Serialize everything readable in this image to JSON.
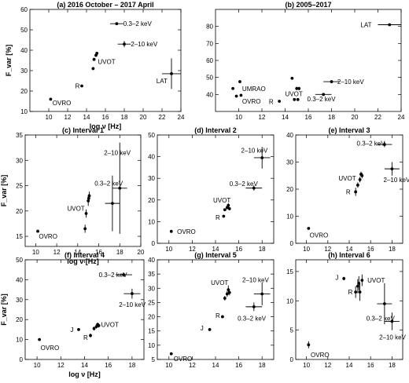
{
  "x_tick_labels": {
    "t10": "10",
    "t12": "12",
    "t14": "14",
    "t16": "16",
    "t18": "18",
    "t20": "20",
    "t22": "22",
    "t24": "24"
  },
  "chart_data": [
    {
      "type": "scatter",
      "title": "(a) 2016 October – 2017 April",
      "xlabel": "log ν [Hz]",
      "ylabel": "F_var [%]",
      "xlim": [
        8,
        24
      ],
      "ylim": [
        10,
        60
      ],
      "xticks": [
        10,
        12,
        14,
        16,
        18,
        20,
        22,
        24
      ],
      "yticks": [
        10,
        20,
        30,
        40,
        50,
        60
      ],
      "points": [
        {
          "x": 10.2,
          "y": 16.0,
          "xerr": 0,
          "yerr": 0.5
        },
        {
          "x": 13.5,
          "y": 22.5,
          "xerr": 0,
          "yerr": 0.5
        },
        {
          "x": 14.7,
          "y": 31.0,
          "xerr": 0,
          "yerr": 0.7
        },
        {
          "x": 14.8,
          "y": 35.5,
          "xerr": 0,
          "yerr": 0.7
        },
        {
          "x": 15.0,
          "y": 37.5,
          "xerr": 0,
          "yerr": 0.7
        },
        {
          "x": 15.1,
          "y": 38.5,
          "xerr": 0,
          "yerr": 0.7
        },
        {
          "x": 17.2,
          "y": 53.0,
          "xerr": 0.7,
          "yerr": 0.6
        },
        {
          "x": 18.0,
          "y": 43.0,
          "xerr": 0.7,
          "yerr": 1.5
        },
        {
          "x": 23.0,
          "y": 28.5,
          "xerr": 1.0,
          "yerr": 7.5
        }
      ],
      "annotations": [
        {
          "text": "OVRO",
          "x": 10.4,
          "y": 14.2
        },
        {
          "text": "R",
          "x": 12.8,
          "y": 22.5
        },
        {
          "text": "UVOT",
          "x": 15.2,
          "y": 34.5
        },
        {
          "text": "0.3–2 keV",
          "x": 17.9,
          "y": 53.0
        },
        {
          "text": "2–10 keV",
          "x": 18.7,
          "y": 43.0
        },
        {
          "text": "LAT",
          "x": 21.4,
          "y": 25.0
        }
      ]
    },
    {
      "type": "scatter",
      "title": "(b) 2005–2017",
      "xlim": [
        8,
        24
      ],
      "ylim": [
        30,
        90
      ],
      "xticks": [
        10,
        12,
        14,
        16,
        18,
        20,
        22,
        24
      ],
      "yticks": [
        40,
        50,
        60,
        70,
        80
      ],
      "points": [
        {
          "x": 9.5,
          "y": 43.5,
          "xerr": 0,
          "yerr": 0.5
        },
        {
          "x": 9.8,
          "y": 39.0,
          "xerr": 0,
          "yerr": 0.5
        },
        {
          "x": 10.1,
          "y": 47.5,
          "xerr": 0,
          "yerr": 0.5
        },
        {
          "x": 10.2,
          "y": 39.5,
          "xerr": 0,
          "yerr": 0.5
        },
        {
          "x": 13.5,
          "y": 36.0,
          "xerr": 0,
          "yerr": 0.5
        },
        {
          "x": 14.6,
          "y": 49.5,
          "xerr": 0,
          "yerr": 0.5
        },
        {
          "x": 14.8,
          "y": 37.0,
          "xerr": 0,
          "yerr": 0.5
        },
        {
          "x": 15.0,
          "y": 43.5,
          "xerr": 0,
          "yerr": 1.0
        },
        {
          "x": 15.1,
          "y": 37.0,
          "xerr": 0,
          "yerr": 0.5
        },
        {
          "x": 15.2,
          "y": 43.5,
          "xerr": 0,
          "yerr": 1.0
        },
        {
          "x": 17.3,
          "y": 40.0,
          "xerr": 0.7,
          "yerr": 0.5
        },
        {
          "x": 18.0,
          "y": 47.5,
          "xerr": 0.7,
          "yerr": 0.5
        },
        {
          "x": 23.0,
          "y": 81.0,
          "xerr": 1.0,
          "yerr": 0.7
        }
      ],
      "annotations": [
        {
          "text": "UMRAO",
          "x": 10.3,
          "y": 43.3
        },
        {
          "text": "OVRO",
          "x": 10.3,
          "y": 36.0
        },
        {
          "text": "R",
          "x": 12.6,
          "y": 35.8
        },
        {
          "text": "UVOT",
          "x": 14.0,
          "y": 40.5
        },
        {
          "text": "0.3–2 keV",
          "x": 15.9,
          "y": 37.5
        },
        {
          "text": "2–10 keV",
          "x": 18.5,
          "y": 47.5
        },
        {
          "text": "LAT",
          "x": 20.5,
          "y": 81.0
        }
      ]
    },
    {
      "type": "scatter",
      "title": "(c) Interval 1",
      "xlabel": "log ν [Hz]",
      "ylabel": "F_var [%]",
      "xlim": [
        9,
        20
      ],
      "ylim": [
        13,
        35
      ],
      "xticks": [
        10,
        12,
        14,
        16,
        18,
        20
      ],
      "yticks": [
        15,
        20,
        25,
        30,
        35
      ],
      "points": [
        {
          "x": 10.2,
          "y": 16.0,
          "xerr": 0,
          "yerr": 0.3
        },
        {
          "x": 14.7,
          "y": 16.5,
          "xerr": 0,
          "yerr": 0.8
        },
        {
          "x": 14.8,
          "y": 19.5,
          "xerr": 0,
          "yerr": 0.8
        },
        {
          "x": 15.0,
          "y": 22.0,
          "xerr": 0,
          "yerr": 1.0
        },
        {
          "x": 15.05,
          "y": 22.5,
          "xerr": 0,
          "yerr": 0.8
        },
        {
          "x": 15.1,
          "y": 23.0,
          "xerr": 0,
          "yerr": 0.8
        },
        {
          "x": 17.3,
          "y": 21.5,
          "xerr": 0.7,
          "yerr": 5.5
        },
        {
          "x": 18.0,
          "y": 24.5,
          "xerr": 0.7,
          "yerr": 9.0
        }
      ],
      "annotations": [
        {
          "text": "OVRO",
          "x": 10.3,
          "y": 15.0
        },
        {
          "text": "UVOT",
          "x": 13.0,
          "y": 20.5
        },
        {
          "text": "0.3–2 keV",
          "x": 15.6,
          "y": 25.5
        },
        {
          "text": "2–10 keV",
          "x": 16.5,
          "y": 31.5
        }
      ]
    },
    {
      "type": "scatter",
      "title": "(d) Interval 2",
      "xlim": [
        9,
        19
      ],
      "ylim": [
        0,
        50
      ],
      "xticks": [
        10,
        12,
        14,
        16,
        18
      ],
      "yticks": [
        0,
        10,
        20,
        30,
        40,
        50
      ],
      "points": [
        {
          "x": 10.2,
          "y": 5.5,
          "xerr": 0,
          "yerr": 0.4
        },
        {
          "x": 14.7,
          "y": 12.5,
          "xerr": 0,
          "yerr": 0.6
        },
        {
          "x": 14.8,
          "y": 15.5,
          "xerr": 0,
          "yerr": 0.6
        },
        {
          "x": 15.0,
          "y": 16.5,
          "xerr": 0,
          "yerr": 0.8
        },
        {
          "x": 15.1,
          "y": 17.5,
          "xerr": 0,
          "yerr": 1.0
        },
        {
          "x": 15.2,
          "y": 16.0,
          "xerr": 0,
          "yerr": 0.8
        },
        {
          "x": 17.3,
          "y": 25.5,
          "xerr": 0.7,
          "yerr": 1.2
        },
        {
          "x": 18.0,
          "y": 39.5,
          "xerr": 0.7,
          "yerr": 5.0
        }
      ],
      "annotations": [
        {
          "text": "OVRO",
          "x": 10.7,
          "y": 5.5
        },
        {
          "text": "R",
          "x": 14.0,
          "y": 12.0
        },
        {
          "text": "UVOT",
          "x": 13.8,
          "y": 20.0
        },
        {
          "text": "0.3–2 keV",
          "x": 15.2,
          "y": 27.5
        },
        {
          "text": "2–10 keV",
          "x": 16.2,
          "y": 43.0
        }
      ]
    },
    {
      "type": "scatter",
      "title": "(e) Interval 3",
      "xlim": [
        9,
        19
      ],
      "ylim": [
        0,
        40
      ],
      "xticks": [
        10,
        12,
        14,
        16,
        18
      ],
      "yticks": [
        0,
        10,
        20,
        30,
        40
      ],
      "points": [
        {
          "x": 10.2,
          "y": 5.5,
          "xerr": 0,
          "yerr": 0.3
        },
        {
          "x": 14.6,
          "y": 19.0,
          "xerr": 0,
          "yerr": 1.5
        },
        {
          "x": 14.8,
          "y": 21.5,
          "xerr": 0,
          "yerr": 1.0
        },
        {
          "x": 15.0,
          "y": 23.5,
          "xerr": 0,
          "yerr": 1.0
        },
        {
          "x": 15.1,
          "y": 25.5,
          "xerr": 0,
          "yerr": 1.0
        },
        {
          "x": 15.2,
          "y": 25.0,
          "xerr": 0,
          "yerr": 1.0
        },
        {
          "x": 17.3,
          "y": 36.5,
          "xerr": 0.7,
          "yerr": 1.0
        },
        {
          "x": 18.0,
          "y": 27.5,
          "xerr": 0.7,
          "yerr": 2.5
        }
      ],
      "annotations": [
        {
          "text": "OVRO",
          "x": 10.3,
          "y": 3.0
        },
        {
          "text": "R",
          "x": 13.7,
          "y": 19.0
        },
        {
          "text": "UVOT",
          "x": 13.0,
          "y": 24.0
        },
        {
          "text": "0.3–2 keV",
          "x": 14.7,
          "y": 37.0
        },
        {
          "text": "2–10 keV",
          "x": 17.2,
          "y": 23.5
        }
      ]
    },
    {
      "type": "scatter",
      "title": "(f) Interval 4",
      "xlabel": "log ν [Hz]",
      "ylabel": "F_var [%]",
      "xlim": [
        9,
        19
      ],
      "ylim": [
        0,
        50
      ],
      "xticks": [
        10,
        12,
        14,
        16,
        18
      ],
      "yticks": [
        0,
        10,
        20,
        30,
        40,
        50
      ],
      "points": [
        {
          "x": 10.2,
          "y": 10.0,
          "xerr": 0,
          "yerr": 0.4
        },
        {
          "x": 13.5,
          "y": 15.0,
          "xerr": 0,
          "yerr": 0.5
        },
        {
          "x": 14.5,
          "y": 12.0,
          "xerr": 0,
          "yerr": 1.0
        },
        {
          "x": 14.8,
          "y": 15.5,
          "xerr": 0,
          "yerr": 1.0
        },
        {
          "x": 15.0,
          "y": 16.5,
          "xerr": 0,
          "yerr": 1.0
        },
        {
          "x": 15.1,
          "y": 17.5,
          "xerr": 0,
          "yerr": 1.0
        },
        {
          "x": 15.2,
          "y": 17.0,
          "xerr": 0,
          "yerr": 1.0
        },
        {
          "x": 17.3,
          "y": 42.5,
          "xerr": 0.7,
          "yerr": 1.0
        },
        {
          "x": 18.0,
          "y": 33.0,
          "xerr": 0.7,
          "yerr": 2.5
        }
      ],
      "annotations": [
        {
          "text": "OVRO",
          "x": 10.3,
          "y": 6.0
        },
        {
          "text": "J",
          "x": 12.8,
          "y": 15.0
        },
        {
          "text": "R",
          "x": 13.9,
          "y": 11.0
        },
        {
          "text": "UVOT",
          "x": 15.4,
          "y": 17.5
        },
        {
          "text": "0.3–2 keV",
          "x": 15.2,
          "y": 42.5
        },
        {
          "text": "2–10 keV",
          "x": 16.9,
          "y": 27.5
        }
      ]
    },
    {
      "type": "scatter",
      "title": "(g) Interval 5",
      "xlim": [
        9,
        19
      ],
      "ylim": [
        5,
        40
      ],
      "xticks": [
        10,
        12,
        14,
        16,
        18
      ],
      "yticks": [
        5,
        10,
        15,
        20,
        25,
        30,
        35,
        40
      ],
      "points": [
        {
          "x": 10.2,
          "y": 7.0,
          "xerr": 0,
          "yerr": 0.3
        },
        {
          "x": 13.5,
          "y": 15.5,
          "xerr": 0,
          "yerr": 0.5
        },
        {
          "x": 14.6,
          "y": 20.0,
          "xerr": 0,
          "yerr": 0.5
        },
        {
          "x": 14.8,
          "y": 26.5,
          "xerr": 0,
          "yerr": 0.8
        },
        {
          "x": 15.0,
          "y": 28.0,
          "xerr": 0,
          "yerr": 1.0
        },
        {
          "x": 15.1,
          "y": 29.5,
          "xerr": 0,
          "yerr": 1.5
        },
        {
          "x": 15.2,
          "y": 28.5,
          "xerr": 0,
          "yerr": 1.0
        },
        {
          "x": 17.3,
          "y": 23.5,
          "xerr": 0.7,
          "yerr": 1.5
        },
        {
          "x": 18.0,
          "y": 28.0,
          "xerr": 0.7,
          "yerr": 4.0
        }
      ],
      "annotations": [
        {
          "text": "OVRO",
          "x": 10.4,
          "y": 5.3
        },
        {
          "text": "J",
          "x": 12.7,
          "y": 16.0
        },
        {
          "text": "R",
          "x": 14.0,
          "y": 20.5
        },
        {
          "text": "UVOT",
          "x": 13.6,
          "y": 32.0
        },
        {
          "text": "2–10 keV",
          "x": 16.3,
          "y": 33.0
        },
        {
          "text": "0.3–2 keV",
          "x": 15.9,
          "y": 19.5
        }
      ]
    },
    {
      "type": "scatter",
      "title": "(h) Interval 6",
      "xlim": [
        9,
        19
      ],
      "ylim": [
        0,
        17
      ],
      "xticks": [
        10,
        12,
        14,
        16,
        18
      ],
      "yticks": [
        0,
        5,
        10,
        15
      ],
      "points": [
        {
          "x": 10.2,
          "y": 2.5,
          "xerr": 0,
          "yerr": 0.6
        },
        {
          "x": 13.5,
          "y": 13.8,
          "xerr": 0,
          "yerr": 0.3
        },
        {
          "x": 14.6,
          "y": 11.5,
          "xerr": 0,
          "yerr": 1.0
        },
        {
          "x": 14.8,
          "y": 12.5,
          "xerr": 0,
          "yerr": 1.2
        },
        {
          "x": 14.9,
          "y": 13.0,
          "xerr": 0,
          "yerr": 1.2
        },
        {
          "x": 15.0,
          "y": 11.5,
          "xerr": 0,
          "yerr": 1.5
        },
        {
          "x": 15.2,
          "y": 13.5,
          "xerr": 0,
          "yerr": 1.0
        },
        {
          "x": 17.3,
          "y": 9.5,
          "xerr": 0.7,
          "yerr": 3.5
        },
        {
          "x": 18.0,
          "y": 6.5,
          "xerr": 0.7,
          "yerr": 1.5
        }
      ],
      "annotations": [
        {
          "text": "OVRO",
          "x": 10.4,
          "y": 0.8
        },
        {
          "text": "J",
          "x": 12.7,
          "y": 14.0
        },
        {
          "text": "R",
          "x": 13.9,
          "y": 11.5
        },
        {
          "text": "UVOT",
          "x": 15.7,
          "y": 13.5
        },
        {
          "text": "0.3–2 keV",
          "x": 15.6,
          "y": 7.0
        },
        {
          "text": "2–10 keV",
          "x": 16.8,
          "y": 3.8
        }
      ]
    }
  ]
}
